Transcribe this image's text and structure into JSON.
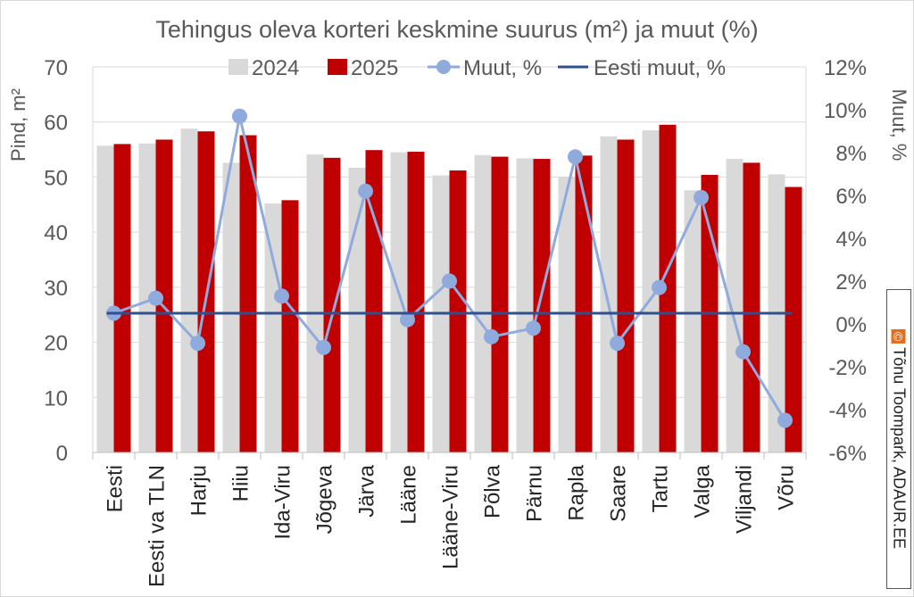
{
  "chart_data": {
    "type": "bar",
    "title": "Tehingus oleva korteri keskmine suurus (m²) ja muut (%)",
    "ylabel_left": "Pind, m²",
    "ylabel_right": "Muut, %",
    "ylim_left": [
      0,
      70
    ],
    "ylim_right": [
      -6,
      12
    ],
    "yticks_left": [
      "0",
      "10",
      "20",
      "30",
      "40",
      "50",
      "60",
      "70"
    ],
    "yticks_right": [
      "-6%",
      "-4%",
      "-2%",
      "0%",
      "2%",
      "4%",
      "6%",
      "8%",
      "10%",
      "12%"
    ],
    "grid": true,
    "legend": "top",
    "categories": [
      "Eesti",
      "Eesti va TLN",
      "Harju",
      "Hiiu",
      "Ida-Viru",
      "Jõgeva",
      "Järva",
      "Lääne",
      "Lääne-Viru",
      "Põlva",
      "Pärnu",
      "Rapla",
      "Saare",
      "Tartu",
      "Valga",
      "Viljandi",
      "Võru"
    ],
    "series": [
      {
        "name": "2024",
        "kind": "bar",
        "axis": "left",
        "color": "#d9d9d9",
        "values": [
          55.7,
          56.1,
          58.8,
          52.6,
          45.2,
          54.1,
          51.7,
          54.5,
          50.3,
          54.0,
          53.4,
          50.0,
          57.4,
          58.5,
          47.6,
          53.3,
          50.5
        ]
      },
      {
        "name": "2025",
        "kind": "bar",
        "axis": "left",
        "color": "#c00000",
        "values": [
          56.0,
          56.8,
          58.3,
          57.6,
          45.8,
          53.5,
          54.9,
          54.6,
          51.2,
          53.7,
          53.3,
          53.9,
          56.8,
          59.5,
          50.4,
          52.6,
          48.2
        ]
      },
      {
        "name": "Muut, %",
        "kind": "line-marker",
        "axis": "right",
        "color": "#8faadc",
        "values": [
          0.5,
          1.2,
          -0.9,
          9.7,
          1.3,
          -1.1,
          6.2,
          0.2,
          2.0,
          -0.6,
          -0.2,
          7.8,
          -0.9,
          1.7,
          5.9,
          -1.3,
          -4.5
        ]
      },
      {
        "name": "Eesti muut, %",
        "kind": "line",
        "axis": "right",
        "color": "#2f4f8f",
        "values": [
          0.5,
          0.5,
          0.5,
          0.5,
          0.5,
          0.5,
          0.5,
          0.5,
          0.5,
          0.5,
          0.5,
          0.5,
          0.5,
          0.5,
          0.5,
          0.5,
          0.5
        ]
      }
    ]
  },
  "credit": {
    "icon": "©",
    "text": "Tõnu Toompark, ADAUR.EE"
  }
}
